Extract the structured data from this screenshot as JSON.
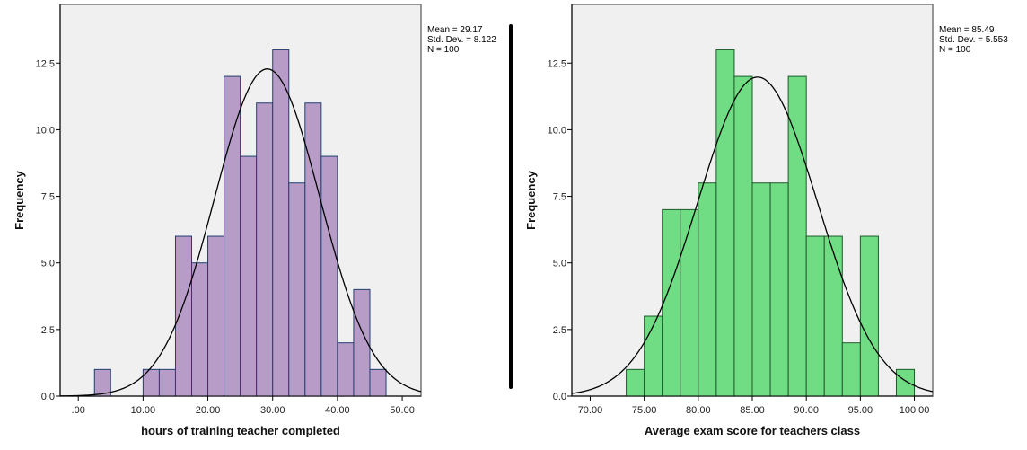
{
  "chart_data": [
    {
      "type": "bar",
      "subtype": "histogram",
      "xlabel": "hours of training teacher completed",
      "ylabel": "Frequency",
      "bin_start": 2.5,
      "bin_width": 2.5,
      "values": [
        1,
        0,
        0,
        1,
        1,
        6,
        5,
        6,
        12,
        9,
        11,
        13,
        8,
        11,
        9,
        2,
        4,
        1
      ],
      "xlim": [
        -2.8,
        52.9
      ],
      "ylim": [
        0,
        14.7
      ],
      "xticks": [
        0,
        10,
        20,
        30,
        40,
        50
      ],
      "xtick_labels": [
        ".00",
        "10.00",
        "20.00",
        "30.00",
        "40.00",
        "50.00"
      ],
      "yticks": [
        0,
        2.5,
        5,
        7.5,
        10,
        12.5
      ],
      "ytick_labels": [
        "0.0",
        "2.5",
        "5.0",
        "7.5",
        "10.0",
        "12.5"
      ],
      "normal_curve": {
        "mean": 29.17,
        "sd": 8.122,
        "n": 100
      },
      "stats": [
        "Mean = 29.17",
        "Std. Dev. = 8.122",
        "N = 100"
      ],
      "bar_color": "#b89cc8",
      "bar_edge": "#1f3f6f",
      "grid": false
    },
    {
      "type": "bar",
      "subtype": "histogram",
      "xlabel": "Average exam score for teachers class",
      "ylabel": "Frequency",
      "bin_start": 73.333,
      "bin_width": 1.6667,
      "values": [
        1,
        3,
        7,
        7,
        8,
        13,
        12,
        8,
        8,
        12,
        6,
        6,
        2,
        6,
        0,
        1
      ],
      "xlim": [
        68.3,
        101.7
      ],
      "ylim": [
        0,
        14.7
      ],
      "xticks": [
        70,
        75,
        80,
        85,
        90,
        95,
        100
      ],
      "xtick_labels": [
        "70.00",
        "75.00",
        "80.00",
        "85.00",
        "90.00",
        "95.00",
        "100.00"
      ],
      "yticks": [
        0,
        2.5,
        5,
        7.5,
        10,
        12.5
      ],
      "ytick_labels": [
        "0.0",
        "2.5",
        "5.0",
        "7.5",
        "10.0",
        "12.5"
      ],
      "normal_curve": {
        "mean": 85.49,
        "sd": 5.553,
        "n": 100
      },
      "stats": [
        "Mean = 85.49",
        "Std. Dev. = 5.553",
        "N = 100"
      ],
      "bar_color": "#70dc84",
      "bar_edge": "#1e5a2a",
      "grid": false
    }
  ]
}
